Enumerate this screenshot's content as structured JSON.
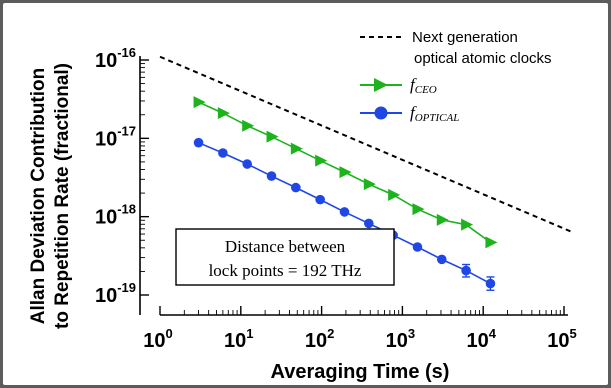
{
  "chart_data": {
    "type": "line",
    "xlabel": "Averaging Time (s)",
    "ylabel_lines": [
      "Allan Deviation Contribution",
      "to Repetition Rate (fractional)"
    ],
    "xscale": "log",
    "yscale": "log",
    "xlim": [
      1,
      100000
    ],
    "ylim": [
      1e-19,
      1e-16
    ],
    "x_ticks": [
      {
        "value": 1,
        "base": "10",
        "exp": "0"
      },
      {
        "value": 10,
        "base": "10",
        "exp": "1"
      },
      {
        "value": 100,
        "base": "10",
        "exp": "2"
      },
      {
        "value": 1000,
        "base": "10",
        "exp": "3"
      },
      {
        "value": 10000,
        "base": "10",
        "exp": "4"
      },
      {
        "value": 100000,
        "base": "10",
        "exp": "5"
      }
    ],
    "y_ticks": [
      {
        "value": 1e-16,
        "base": "10",
        "exp": "-16"
      },
      {
        "value": 1e-17,
        "base": "10",
        "exp": "-17"
      },
      {
        "value": 1e-18,
        "base": "10",
        "exp": "-18"
      },
      {
        "value": 1e-19,
        "base": "10",
        "exp": "-19"
      }
    ],
    "grid": false,
    "legend_position": "top-right",
    "series": [
      {
        "name": "Next generation optical atomic clocks",
        "legend_lines": [
          "Next generation",
          "optical atomic clocks"
        ],
        "style": "dashed",
        "color": "#000000",
        "marker": "none",
        "x": [
          1,
          120000
        ],
        "y": [
          1.1e-16,
          6.5e-19
        ]
      },
      {
        "name": "fCEO",
        "legend_main": "f",
        "legend_sub": "CEO",
        "style": "solid",
        "color": "#1db31d",
        "marker": "triangle-right",
        "x": [
          3,
          6,
          12,
          24,
          48,
          96,
          192,
          384,
          768,
          1536,
          3072,
          6144,
          12288
        ],
        "y": [
          2.9e-17,
          2.1e-17,
          1.45e-17,
          1.05e-17,
          7.4e-18,
          5.2e-18,
          3.7e-18,
          2.6e-18,
          1.9e-18,
          1.25e-18,
          9.1e-19,
          7.9e-19,
          4.7e-19
        ]
      },
      {
        "name": "fOPTICAL",
        "legend_main": "f",
        "legend_sub": "OPTICAL",
        "style": "solid",
        "color": "#1f47e6",
        "marker": "circle",
        "x": [
          3,
          6,
          12,
          24,
          48,
          96,
          192,
          384,
          768,
          1536,
          3072,
          6144,
          12288
        ],
        "y": [
          8.8e-18,
          6.5e-18,
          4.7e-18,
          3.3e-18,
          2.35e-18,
          1.65e-18,
          1.15e-18,
          8.2e-19,
          5.8e-19,
          4.1e-19,
          2.85e-19,
          2.05e-19,
          1.4e-19
        ],
        "error_bars_on_last": 2,
        "err_lo": [
          1.7e-19,
          1.15e-19
        ],
        "err_hi": [
          2.45e-19,
          1.7e-19
        ]
      }
    ],
    "annotation_lines": [
      "Distance between",
      "lock points = 192 THz"
    ]
  }
}
